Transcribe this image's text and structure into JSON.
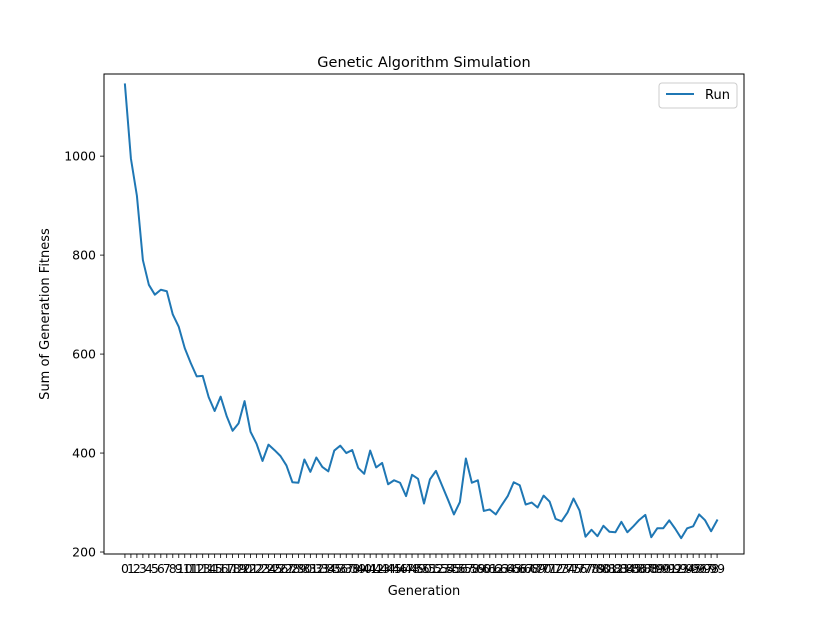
{
  "chart_data": {
    "type": "line",
    "title": "Genetic Algorithm Simulation",
    "xlabel": "Generation",
    "ylabel": "Sum of Generation Fitness",
    "xlim": [
      -3.5,
      103.5
    ],
    "ylim": [
      196,
      1166
    ],
    "y_ticks": [
      200,
      400,
      600,
      800,
      1000
    ],
    "legend_position": "top-right",
    "grid": false,
    "series": [
      {
        "name": "Run",
        "color": "#1f77b4",
        "x": [
          0,
          1,
          2,
          3,
          4,
          5,
          6,
          7,
          8,
          9,
          10,
          11,
          12,
          13,
          14,
          15,
          16,
          17,
          18,
          19,
          20,
          21,
          22,
          23,
          24,
          25,
          26,
          27,
          28,
          29,
          30,
          31,
          32,
          33,
          34,
          35,
          36,
          37,
          38,
          39,
          40,
          41,
          42,
          43,
          44,
          45,
          46,
          47,
          48,
          49,
          50,
          51,
          52,
          53,
          54,
          55,
          56,
          57,
          58,
          59,
          60,
          61,
          62,
          63,
          64,
          65,
          66,
          67,
          68,
          69,
          70,
          71,
          72,
          73,
          74,
          75,
          76,
          77,
          78,
          79,
          80,
          81,
          82,
          83,
          84,
          85,
          86,
          87,
          88,
          89,
          90,
          91,
          92,
          93,
          94,
          95,
          96,
          97,
          98,
          99
        ],
        "y": [
          1145,
          995,
          920,
          790,
          740,
          720,
          730,
          727,
          680,
          655,
          612,
          582,
          555,
          556,
          513,
          485,
          514,
          475,
          445,
          460,
          505,
          443,
          419,
          384,
          417,
          406,
          394,
          375,
          341,
          340,
          387,
          362,
          391,
          372,
          363,
          405,
          415,
          400,
          406,
          370,
          358,
          405,
          371,
          380,
          337,
          345,
          340,
          313,
          356,
          348,
          298,
          347,
          364,
          335,
          306,
          276,
          301,
          389,
          340,
          345,
          283,
          286,
          276,
          295,
          313,
          341,
          335,
          296,
          300,
          290,
          314,
          302,
          267,
          262,
          280,
          308,
          284,
          231,
          245,
          232,
          253,
          241,
          240,
          261,
          240,
          252,
          265,
          275,
          230,
          248,
          248,
          264,
          247,
          228,
          248,
          252,
          276,
          264,
          242,
          264
        ]
      }
    ]
  }
}
